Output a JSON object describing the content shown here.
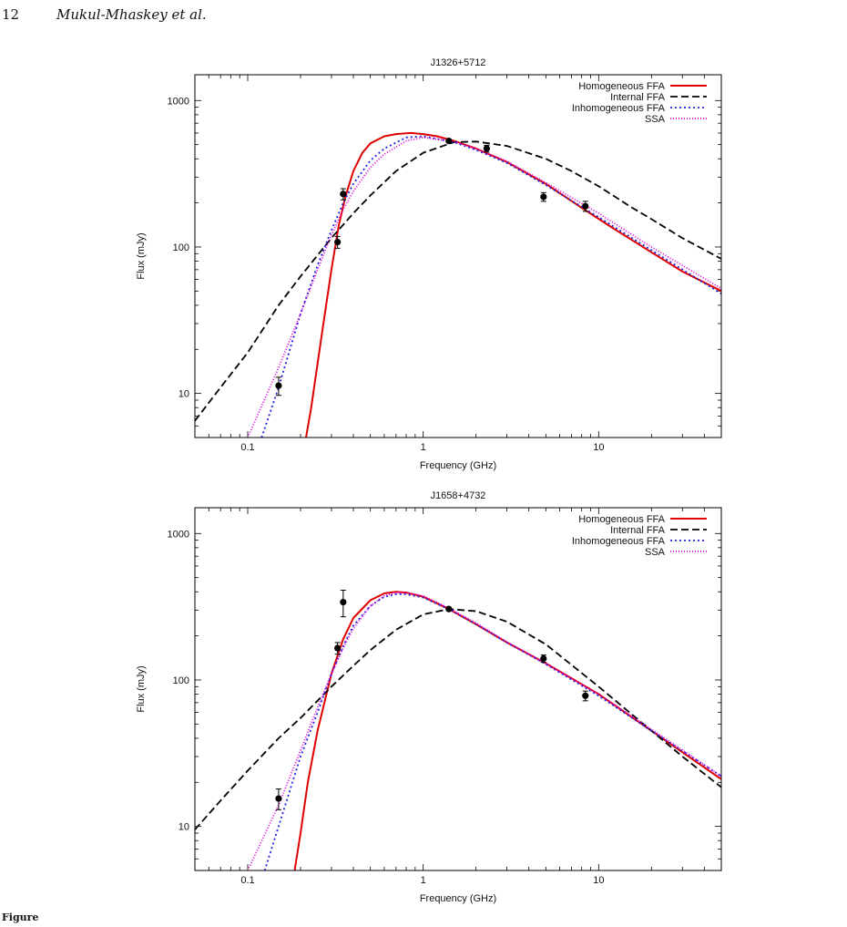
{
  "header": {
    "page_number": "12",
    "running_head": "Mukul-Mhaskey et al."
  },
  "caption": {
    "label": "Figure",
    "text": ""
  },
  "chart_data": [
    {
      "type": "line",
      "title": "J1326+5712",
      "xlabel": "Frequency (GHz)",
      "ylabel": "Flux (mJy)",
      "xscale": "log",
      "yscale": "log",
      "xlim": [
        0.05,
        50
      ],
      "ylim": [
        5,
        1500
      ],
      "xticks": [
        0.1,
        1,
        10
      ],
      "xtick_labels": [
        "0.1",
        "1",
        "10"
      ],
      "yticks": [
        10,
        100,
        1000
      ],
      "ytick_labels": [
        "10",
        "100",
        "1000"
      ],
      "grid": false,
      "legend": "top-right",
      "observations": {
        "x": [
          0.15,
          0.325,
          0.35,
          1.4,
          2.3,
          4.85,
          8.4
        ],
        "y": [
          11.3,
          108,
          230,
          530,
          470,
          220,
          190
        ],
        "yerr": [
          1.6,
          10,
          20,
          10,
          25,
          15,
          15
        ]
      },
      "series": [
        {
          "name": "Homogeneous FFA",
          "color": "#e00000",
          "dash": "solid",
          "x": [
            0.215,
            0.23,
            0.25,
            0.27,
            0.3,
            0.33,
            0.36,
            0.4,
            0.45,
            0.5,
            0.6,
            0.7,
            0.85,
            1.0,
            1.2,
            1.5,
            2,
            3,
            5,
            8,
            12,
            20,
            30,
            50
          ],
          "y": [
            5,
            8,
            16,
            30,
            70,
            140,
            220,
            330,
            440,
            510,
            570,
            590,
            600,
            590,
            570,
            530,
            470,
            380,
            270,
            185,
            135,
            92,
            68,
            50
          ]
        },
        {
          "name": "Internal FFA",
          "color": "#000000",
          "dash": "8,4",
          "x": [
            0.05,
            0.07,
            0.1,
            0.15,
            0.2,
            0.3,
            0.4,
            0.5,
            0.7,
            1.0,
            1.5,
            2,
            3,
            5,
            7,
            10,
            15,
            20,
            30,
            50
          ],
          "y": [
            6.5,
            11,
            19,
            40,
            63,
            115,
            170,
            225,
            330,
            440,
            520,
            525,
            490,
            400,
            330,
            260,
            190,
            155,
            115,
            83
          ]
        },
        {
          "name": "Inhomogeneous FFA",
          "color": "#2020e0",
          "dash": "2,3",
          "x": [
            0.12,
            0.15,
            0.2,
            0.25,
            0.3,
            0.35,
            0.4,
            0.5,
            0.6,
            0.8,
            1.0,
            1.5,
            2,
            3,
            5,
            10,
            20,
            50
          ],
          "y": [
            5,
            11,
            35,
            75,
            130,
            200,
            270,
            390,
            470,
            560,
            570,
            520,
            460,
            375,
            265,
            160,
            95,
            48
          ]
        },
        {
          "name": "SSA",
          "color": "#e000e0",
          "dash": "1,2",
          "x": [
            0.1,
            0.15,
            0.2,
            0.25,
            0.3,
            0.35,
            0.4,
            0.5,
            0.6,
            0.8,
            1.0,
            1.5,
            2,
            3,
            5,
            10,
            20,
            50
          ],
          "y": [
            5,
            15,
            35,
            70,
            120,
            180,
            240,
            350,
            430,
            530,
            560,
            525,
            470,
            385,
            275,
            170,
            100,
            52
          ]
        }
      ]
    },
    {
      "type": "line",
      "title": "J1658+4732",
      "xlabel": "Frequency (GHz)",
      "ylabel": "Flux (mJy)",
      "xscale": "log",
      "yscale": "log",
      "xlim": [
        0.05,
        50
      ],
      "ylim": [
        5,
        1500
      ],
      "xticks": [
        0.1,
        1,
        10
      ],
      "xtick_labels": [
        "0.1",
        "1",
        "10"
      ],
      "yticks": [
        10,
        100,
        1000
      ],
      "ytick_labels": [
        "10",
        "100",
        "1000"
      ],
      "grid": false,
      "legend": "top-right",
      "observations": {
        "x": [
          0.15,
          0.325,
          0.35,
          1.4,
          4.85,
          8.4
        ],
        "y": [
          15.5,
          165,
          340,
          305,
          140,
          78
        ],
        "yerr": [
          2.5,
          15,
          70,
          8,
          8,
          6
        ]
      },
      "series": [
        {
          "name": "Homogeneous FFA",
          "color": "#e00000",
          "dash": "solid",
          "x": [
            0.185,
            0.2,
            0.22,
            0.25,
            0.3,
            0.35,
            0.4,
            0.5,
            0.6,
            0.7,
            0.8,
            1.0,
            1.4,
            2,
            3,
            5,
            10,
            20,
            50
          ],
          "y": [
            5,
            9,
            20,
            45,
            110,
            190,
            265,
            350,
            390,
            400,
            395,
            370,
            305,
            240,
            180,
            130,
            80,
            45,
            21
          ]
        },
        {
          "name": "Internal FFA",
          "color": "#000000",
          "dash": "8,4",
          "x": [
            0.05,
            0.07,
            0.1,
            0.15,
            0.2,
            0.3,
            0.4,
            0.5,
            0.7,
            1.0,
            1.4,
            2,
            3,
            5,
            10,
            20,
            30,
            50
          ],
          "y": [
            9.5,
            15,
            24,
            40,
            55,
            90,
            125,
            160,
            220,
            280,
            305,
            295,
            250,
            175,
            90,
            45,
            30,
            18.5
          ]
        },
        {
          "name": "Inhomogeneous FFA",
          "color": "#2020e0",
          "dash": "2,3",
          "x": [
            0.125,
            0.15,
            0.2,
            0.25,
            0.3,
            0.35,
            0.4,
            0.5,
            0.6,
            0.7,
            0.8,
            1.0,
            1.4,
            2,
            3,
            5,
            10,
            20,
            50
          ],
          "y": [
            5,
            10,
            30,
            60,
            110,
            170,
            235,
            320,
            370,
            385,
            385,
            365,
            305,
            240,
            180,
            128,
            78,
            45,
            22
          ]
        },
        {
          "name": "SSA",
          "color": "#e000e0",
          "dash": "1,2",
          "x": [
            0.1,
            0.15,
            0.2,
            0.25,
            0.3,
            0.35,
            0.4,
            0.5,
            0.6,
            0.7,
            0.8,
            1.0,
            1.4,
            2,
            3,
            5,
            10,
            20,
            50
          ],
          "y": [
            5,
            14,
            33,
            65,
            110,
            165,
            225,
            320,
            375,
            395,
            395,
            375,
            310,
            245,
            182,
            130,
            80,
            46,
            22
          ]
        }
      ]
    }
  ]
}
